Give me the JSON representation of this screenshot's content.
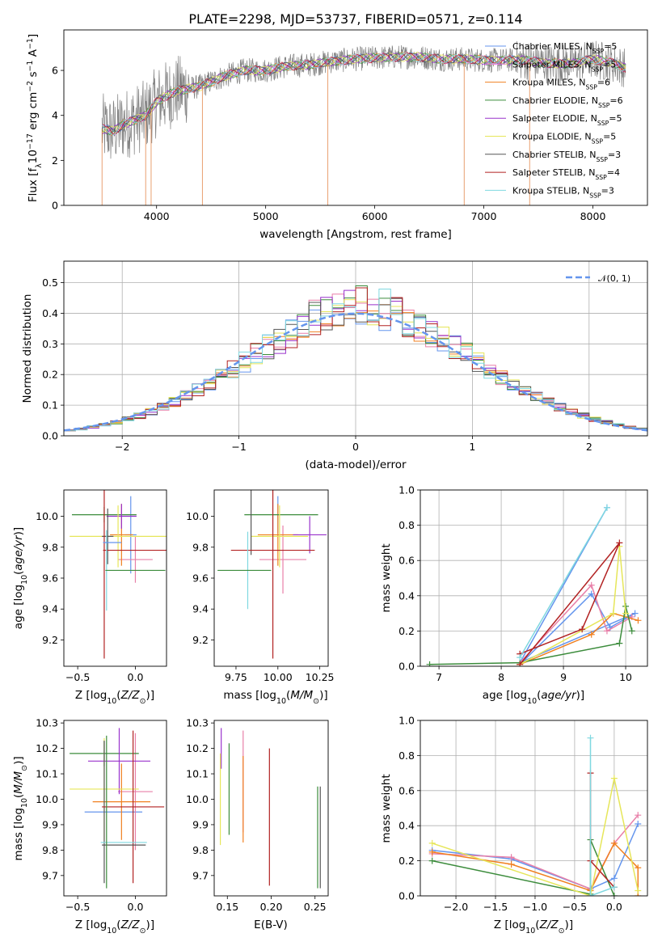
{
  "figure": {
    "title": "PLATE=2298, MJD=53737, FIBERID=0571, z=0.114"
  },
  "colors": {
    "Chabrier MILES": "#6495ed",
    "Salpeter MILES": "#ee82ee",
    "Kroupa MILES": "#f08020",
    "Chabrier ELODIE": "#3c8c3c",
    "Salpeter ELODIE": "#9932cc",
    "Kroupa ELODIE": "#e6e65a",
    "Chabrier STELIB": "#555555",
    "Salpeter STELIB": "#b22222",
    "Kroupa STELIB": "#7fd8e0",
    "Pink": "#e87fa8"
  },
  "chart_data": [
    {
      "id": "spectrum",
      "type": "line",
      "title": "PLATE=2298, MJD=53737, FIBERID=0571, z=0.114",
      "xlabel": "wavelength [Angstrom, rest frame]",
      "ylabel": "Flux [f_λ 10^-17 erg cm^-2 s^-1 A^-1]",
      "xlim": [
        3150,
        8500
      ],
      "ylim": [
        0,
        7.8
      ],
      "xticks": [
        4000,
        5000,
        6000,
        7000,
        8000
      ],
      "yticks": [
        0,
        2,
        4,
        6
      ],
      "legend_position": "top-right",
      "continuum": {
        "x": [
          3500,
          3600,
          3700,
          3800,
          3900,
          4000,
          4100,
          4200,
          4400,
          4600,
          4800,
          5000,
          5200,
          5400,
          5600,
          5800,
          6000,
          6200,
          6400,
          6600,
          6800,
          7000,
          7200,
          7400,
          7600,
          7800,
          8000,
          8200,
          8300
        ],
        "y": [
          3.4,
          3.3,
          3.6,
          3.8,
          4.0,
          4.6,
          4.9,
          5.1,
          5.3,
          5.7,
          6.0,
          6.0,
          6.2,
          6.25,
          6.4,
          6.5,
          6.55,
          6.6,
          6.6,
          6.5,
          6.5,
          6.45,
          6.45,
          6.45,
          6.3,
          6.3,
          6.5,
          6.3,
          6.1
        ]
      },
      "series": [
        {
          "name": "Chabrier MILES",
          "nssp": "N_SSP=5",
          "label": "Chabrier MILES, N"
        },
        {
          "name": "Salpeter MILES",
          "nssp": "N_SSP=5",
          "label": "Salpeter MILES, N"
        },
        {
          "name": "Kroupa MILES",
          "nssp": "N_SSP=6",
          "label": "Kroupa MILES, N"
        },
        {
          "name": "Chabrier ELODIE",
          "nssp": "N_SSP=6",
          "label": "Chabrier ELODIE, N"
        },
        {
          "name": "Salpeter ELODIE",
          "nssp": "N_SSP=5",
          "label": "Salpeter ELODIE, N"
        },
        {
          "name": "Kroupa ELODIE",
          "nssp": "N_SSP=5",
          "label": "Kroupa ELODIE, N"
        },
        {
          "name": "Chabrier STELIB",
          "nssp": "N_SSP=3",
          "label": "Chabrier STELIB, N"
        },
        {
          "name": "Salpeter STELIB",
          "nssp": "N_SSP=4",
          "label": "Salpeter STELIB, N"
        },
        {
          "name": "Kroupa STELIB",
          "nssp": "N_SSP=3",
          "label": "Kroupa STELIB, N"
        }
      ],
      "data_gaps_x": [
        3500,
        3900,
        3950,
        4420,
        5570,
        6820,
        7420
      ]
    },
    {
      "id": "residuals",
      "type": "histogram",
      "xlabel": "(data-model)/error",
      "ylabel": "Normed distribution",
      "xlim": [
        -2.5,
        2.5
      ],
      "ylim": [
        0,
        0.57
      ],
      "xticks": [
        -2,
        -1,
        0,
        1,
        2
      ],
      "yticks": [
        0.0,
        0.1,
        0.2,
        0.3,
        0.4,
        0.5
      ],
      "grid": true,
      "legend_position": "top-right",
      "reference_curve": {
        "name": "𝒩(0, 1)",
        "mean": 0,
        "sigma": 1
      }
    },
    {
      "id": "age-vs-Z",
      "type": "errorbar",
      "xlabel": "Z [log10(Z/Z⊙)]",
      "ylabel": "age  [log10(age/yr)]",
      "xlim": [
        -0.62,
        0.27
      ],
      "ylim": [
        9.03,
        10.17
      ],
      "xticks": [
        -0.5,
        0.0
      ],
      "yticks": [
        9.2,
        9.4,
        9.6,
        9.8,
        10.0
      ],
      "points": [
        {
          "color": "Chabrier MILES",
          "x": -0.04,
          "y": 9.88,
          "xerr": 0.05,
          "yerr": 0.25
        },
        {
          "color": "Pink",
          "x": 0.0,
          "y": 9.72,
          "xerr": 0.15,
          "yerr": 0.15
        },
        {
          "color": "Kroupa MILES",
          "x": -0.12,
          "y": 9.88,
          "xerr": 0.1,
          "yerr": 0.2
        },
        {
          "color": "Chabrier ELODIE",
          "x": -0.27,
          "y": 10.01,
          "xerr": 0.28,
          "yerr": 0.05
        },
        {
          "color": "Salpeter ELODIE",
          "x": -0.12,
          "y": 10.0,
          "xerr": 0.13,
          "yerr": 0.08
        },
        {
          "color": "Kroupa ELODIE",
          "x": -0.15,
          "y": 9.87,
          "xerr": 0.42,
          "yerr": 0.2
        },
        {
          "color": "Chabrier STELIB",
          "x": -0.24,
          "y": 9.87,
          "xerr": 0.05,
          "yerr": 0.18
        },
        {
          "color": "Salpeter STELIB",
          "x": -0.27,
          "y": 9.78,
          "xerr": 0.0,
          "yerr": 0.7
        },
        {
          "color": "Salpeter STELIB",
          "x": -0.0,
          "y": 9.78,
          "xerr": 0.28,
          "yerr": 0.0
        },
        {
          "color": "Kroupa STELIB",
          "x": -0.25,
          "y": 9.65,
          "xerr": 0.0,
          "yerr": 0.26
        },
        {
          "color": "Chabrier ELODIE",
          "x": 0.0,
          "y": 9.65,
          "xerr": 0.26,
          "yerr": 0.0
        },
        {
          "color": "Chabrier MILES",
          "x": -0.2,
          "y": 9.83,
          "xerr": 0.08,
          "yerr": 0.0
        }
      ]
    },
    {
      "id": "age-vs-mass",
      "type": "errorbar",
      "xlabel": "mass [log10(M/M⊙)]",
      "ylabel": "",
      "xlim": [
        9.62,
        10.3
      ],
      "ylim": [
        9.03,
        10.17
      ],
      "xticks": [
        9.75,
        10.0,
        10.25
      ],
      "yticks": [
        9.2,
        9.4,
        9.6,
        9.8,
        10.0
      ],
      "points": [
        {
          "color": "Chabrier MILES",
          "x": 10.0,
          "y": 10.01,
          "xerr": 0.0,
          "yerr": 0.12
        },
        {
          "color": "Pink",
          "x": 10.03,
          "y": 9.72,
          "xerr": 0.14,
          "yerr": 0.22
        },
        {
          "color": "Kroupa MILES",
          "x": 10.0,
          "y": 9.88,
          "xerr": 0.12,
          "yerr": 0.2
        },
        {
          "color": "Chabrier ELODIE",
          "x": 10.02,
          "y": 10.01,
          "xerr": 0.22,
          "yerr": 0.0
        },
        {
          "color": "Salpeter ELODIE",
          "x": 10.19,
          "y": 9.88,
          "xerr": 0.1,
          "yerr": 0.12
        },
        {
          "color": "Kroupa ELODIE",
          "x": 10.01,
          "y": 9.87,
          "xerr": 0.17,
          "yerr": 0.2
        },
        {
          "color": "Chabrier STELIB",
          "x": 9.84,
          "y": 10.0,
          "xerr": 0.0,
          "yerr": 0.25
        },
        {
          "color": "Salpeter STELIB",
          "x": 9.97,
          "y": 9.78,
          "xerr": 0.25,
          "yerr": 0.7
        },
        {
          "color": "Kroupa STELIB",
          "x": 9.82,
          "y": 9.65,
          "xerr": 0.0,
          "yerr": 0.25
        },
        {
          "color": "Chabrier ELODIE",
          "x": 9.8,
          "y": 9.65,
          "xerr": 0.16,
          "yerr": 0.0
        }
      ]
    },
    {
      "id": "weight-vs-age",
      "type": "line",
      "xlabel": "age  [log10(age/yr)]",
      "ylabel": "mass weight",
      "xlim": [
        6.7,
        10.35
      ],
      "ylim": [
        0,
        1.0
      ],
      "xticks": [
        7,
        8,
        9,
        10
      ],
      "yticks": [
        0.0,
        0.2,
        0.4,
        0.6,
        0.8,
        1.0
      ],
      "grid": true,
      "series": [
        {
          "color": "Chabrier MILES",
          "x": [
            8.3,
            9.45,
            9.75,
            10.15,
            8.3,
            9.7
          ],
          "y": [
            0.01,
            0.41,
            0.22,
            0.3,
            0.02,
            0.9
          ]
        },
        {
          "color": "Pink",
          "x": [
            8.3,
            9.45,
            9.7,
            10.1
          ],
          "y": [
            0.02,
            0.46,
            0.2,
            0.28
          ]
        },
        {
          "color": "Kroupa MILES",
          "x": [
            8.3,
            9.45,
            9.8,
            10.2
          ],
          "y": [
            0.01,
            0.18,
            0.3,
            0.26
          ]
        },
        {
          "color": "Chabrier ELODIE",
          "x": [
            6.85,
            8.3,
            9.9,
            10.0,
            10.1
          ],
          "y": [
            0.01,
            0.02,
            0.13,
            0.34,
            0.2
          ]
        },
        {
          "color": "Kroupa ELODIE",
          "x": [
            8.3,
            9.8,
            9.9,
            10.0
          ],
          "y": [
            0.01,
            0.3,
            0.68,
            0.3
          ]
        },
        {
          "color": "Salpeter STELIB",
          "x": [
            8.3,
            9.3,
            9.9,
            8.3
          ],
          "y": [
            0.07,
            0.21,
            0.7,
            0.01
          ]
        },
        {
          "color": "Kroupa STELIB",
          "x": [
            8.3,
            9.7
          ],
          "y": [
            0.05,
            0.9
          ]
        }
      ]
    },
    {
      "id": "mass-vs-Z",
      "type": "errorbar",
      "xlabel": "Z [log10(Z/Z⊙)]",
      "ylabel": "mass [log10(M/M⊙)]",
      "xlim": [
        -0.62,
        0.27
      ],
      "ylim": [
        9.62,
        10.31
      ],
      "xticks": [
        -0.5,
        0.0
      ],
      "yticks": [
        9.7,
        9.8,
        9.9,
        10.0,
        10.1,
        10.2,
        10.3
      ],
      "points": [
        {
          "color": "Chabrier MILES",
          "x": -0.19,
          "y": 9.95,
          "xerr": 0.25,
          "yerr": 0.0
        },
        {
          "color": "Pink",
          "x": 0.0,
          "y": 10.03,
          "xerr": 0.15,
          "yerr": 0.23
        },
        {
          "color": "Kroupa MILES",
          "x": -0.12,
          "y": 9.99,
          "xerr": 0.25,
          "yerr": 0.15
        },
        {
          "color": "Chabrier ELODIE",
          "x": -0.27,
          "y": 10.18,
          "xerr": 0.3,
          "yerr": 0.05
        },
        {
          "color": "Salpeter ELODIE",
          "x": -0.14,
          "y": 10.15,
          "xerr": 0.27,
          "yerr": 0.13
        },
        {
          "color": "Kroupa ELODIE",
          "x": -0.27,
          "y": 10.04,
          "xerr": 0.3,
          "yerr": 0.2
        },
        {
          "color": "Chabrier STELIB",
          "x": -0.27,
          "y": 9.95,
          "xerr": 0.0,
          "yerr": 0.28
        },
        {
          "color": "Salpeter STELIB",
          "x": -0.02,
          "y": 9.97,
          "xerr": 0.27,
          "yerr": 0.3
        },
        {
          "color": "Kroupa STELIB",
          "x": -0.1,
          "y": 9.83,
          "xerr": 0.2,
          "yerr": 0.0
        },
        {
          "color": "Chabrier STELIB",
          "x": -0.1,
          "y": 9.82,
          "xerr": 0.19,
          "yerr": 0.0
        },
        {
          "color": "Chabrier ELODIE",
          "x": -0.25,
          "y": 9.95,
          "xerr": 0.0,
          "yerr": 0.3
        }
      ]
    },
    {
      "id": "mass-vs-ebv",
      "type": "errorbar",
      "xlabel": "E(B-V)",
      "ylabel": "",
      "xlim": [
        0.135,
        0.265
      ],
      "ylim": [
        9.62,
        10.31
      ],
      "xticks": [
        0.15,
        0.2,
        0.25
      ],
      "yticks": [
        9.7,
        9.8,
        9.9,
        10.0,
        10.1,
        10.2,
        10.3
      ],
      "points": [
        {
          "color": "Salpeter ELODIE",
          "x": 0.143,
          "y": 10.2,
          "xerr": 0.0,
          "yerr": 0.08
        },
        {
          "color": "Kroupa ELODIE",
          "x": 0.142,
          "y": 10.0,
          "xerr": 0.0,
          "yerr": 0.18
        },
        {
          "color": "Chabrier ELODIE",
          "x": 0.152,
          "y": 10.04,
          "xerr": 0.0,
          "yerr": 0.18
        },
        {
          "color": "Pink",
          "x": 0.168,
          "y": 10.07,
          "xerr": 0.0,
          "yerr": 0.2
        },
        {
          "color": "Kroupa MILES",
          "x": 0.168,
          "y": 10.0,
          "xerr": 0.0,
          "yerr": 0.17
        },
        {
          "color": "Salpeter STELIB",
          "x": 0.198,
          "y": 9.93,
          "xerr": 0.0,
          "yerr": 0.27
        },
        {
          "color": "Chabrier ELODIE",
          "x": 0.253,
          "y": 9.85,
          "xerr": 0.0,
          "yerr": 0.2
        },
        {
          "color": "Chabrier STELIB",
          "x": 0.256,
          "y": 9.85,
          "xerr": 0.0,
          "yerr": 0.2
        }
      ]
    },
    {
      "id": "weight-vs-Z",
      "type": "line",
      "xlabel": "Z [log10(Z/Z⊙)]",
      "ylabel": "mass weight",
      "xlim": [
        -2.45,
        0.42
      ],
      "ylim": [
        0,
        1.0
      ],
      "xticks": [
        -2.0,
        -1.5,
        -1.0,
        -0.5,
        0.0
      ],
      "yticks": [
        0.0,
        0.2,
        0.4,
        0.6,
        0.8,
        1.0
      ],
      "grid": true,
      "series": [
        {
          "color": "Chabrier MILES",
          "x": [
            -2.3,
            -1.3,
            -0.3,
            0.0,
            0.3
          ],
          "y": [
            0.26,
            0.21,
            0.04,
            0.1,
            0.41
          ]
        },
        {
          "color": "Pink",
          "x": [
            -2.3,
            -1.3,
            -0.3,
            0.0,
            0.3
          ],
          "y": [
            0.24,
            0.22,
            0.04,
            0.3,
            0.46
          ]
        },
        {
          "color": "Kroupa MILES",
          "x": [
            -2.3,
            -1.3,
            -0.3,
            0.0,
            0.3,
            0.3
          ],
          "y": [
            0.25,
            0.18,
            0.03,
            0.3,
            0.16,
            0.0
          ]
        },
        {
          "color": "Chabrier ELODIE",
          "x": [
            -2.3,
            -0.3,
            -0.3,
            0.0
          ],
          "y": [
            0.2,
            0.01,
            0.32,
            0.0
          ]
        },
        {
          "color": "Kroupa ELODIE",
          "x": [
            -2.3,
            -0.3,
            0.0,
            0.3
          ],
          "y": [
            0.3,
            0.0,
            0.67,
            0.03
          ]
        },
        {
          "color": "Salpeter STELIB",
          "x": [
            -0.3,
            -0.3,
            0.0
          ],
          "y": [
            0.7,
            0.2,
            0.05
          ]
        },
        {
          "color": "Kroupa STELIB",
          "x": [
            -0.3,
            -0.3,
            0.0
          ],
          "y": [
            0.9,
            0.0,
            0.05
          ]
        }
      ]
    }
  ]
}
